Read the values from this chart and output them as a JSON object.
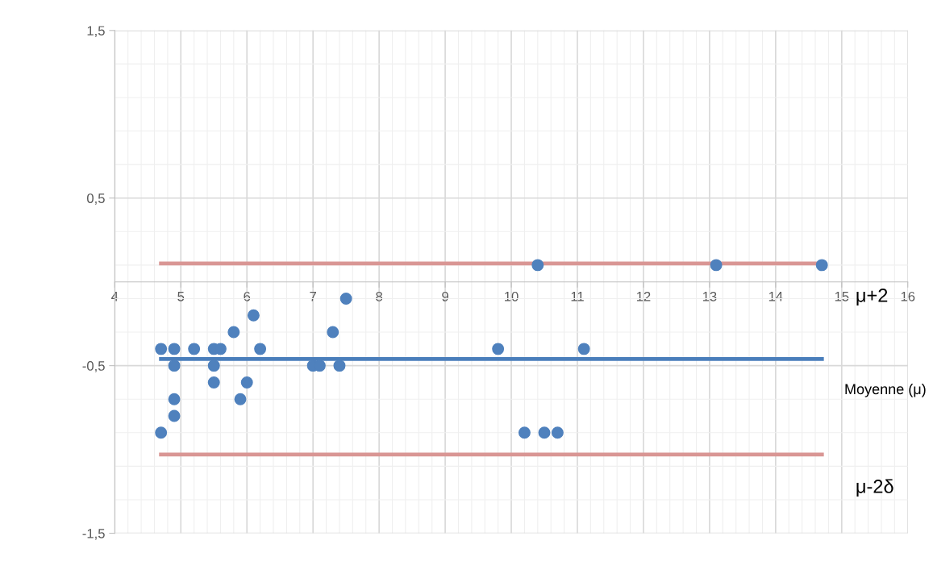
{
  "chart_data": {
    "type": "scatter",
    "xlim": [
      4,
      16
    ],
    "ylim": [
      -1.5,
      1.5
    ],
    "xticks": [
      4,
      5,
      6,
      7,
      8,
      9,
      10,
      11,
      12,
      13,
      14,
      15,
      16
    ],
    "yticks": [
      {
        "value": -1.5,
        "label": "-1,5"
      },
      {
        "value": -0.5,
        "label": "-0,5"
      },
      {
        "value": 0.5,
        "label": "0,5"
      },
      {
        "value": 1.5,
        "label": "1,5"
      }
    ],
    "grid": true,
    "marker": "circle",
    "series": [
      {
        "type": "line",
        "marker": "none",
        "color": "#d99694",
        "x": [
          4.7,
          14.7
        ],
        "values": [
          0.11,
          0.11
        ]
      },
      {
        "type": "line",
        "marker": "none",
        "color": "#4a7ebb",
        "x": [
          4.7,
          14.7
        ],
        "values": [
          -0.46,
          -0.46
        ]
      },
      {
        "type": "line",
        "marker": "none",
        "color": "#d99694",
        "x": [
          4.7,
          14.7
        ],
        "values": [
          -1.03,
          -1.03
        ]
      },
      {
        "color": "#4f81bd",
        "x": [
          4.7,
          4.7,
          4.9,
          4.9,
          4.9,
          4.9,
          5.2,
          5.5,
          5.5,
          5.5,
          5.6,
          5.8,
          5.9,
          6.0,
          6.1,
          6.2,
          7.0,
          7.1,
          7.3,
          7.4,
          7.5,
          9.8,
          10.2,
          10.5,
          10.7,
          11.1,
          10.4,
          13.1,
          14.7
        ],
        "values": [
          -0.4,
          -0.9,
          -0.4,
          -0.5,
          -0.7,
          -0.8,
          -0.4,
          -0.4,
          -0.5,
          -0.6,
          -0.4,
          -0.3,
          -0.7,
          -0.6,
          -0.2,
          -0.4,
          -0.5,
          -0.5,
          -0.3,
          -0.5,
          -0.1,
          -0.4,
          -0.9,
          -0.9,
          -0.9,
          -0.4,
          0.1,
          0.1,
          0.1
        ]
      }
    ],
    "annotations": [
      "μ+2",
      "Moyenne (μ)",
      "μ-2δ"
    ]
  }
}
